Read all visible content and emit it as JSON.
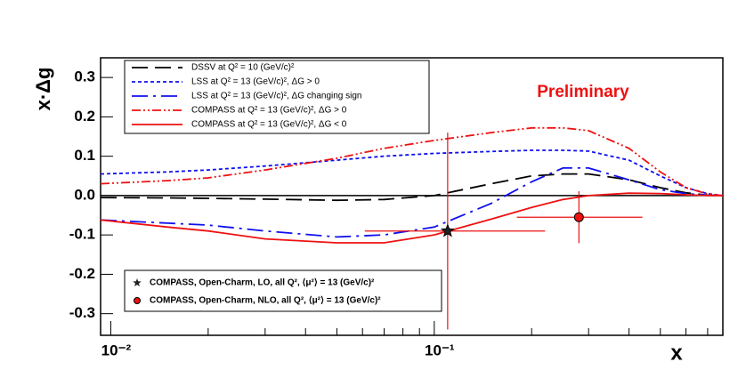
{
  "chart_data": {
    "type": "line",
    "title": "Preliminary",
    "title_color": "#ee1111",
    "x_label": "x",
    "y_label": "x·Δg",
    "log_x": true,
    "xlim": [
      0.0093,
      0.78
    ],
    "ylim": [
      -0.355,
      0.35
    ],
    "xticks": [
      {
        "value": 0.01,
        "label": "10⁻²"
      },
      {
        "value": 0.1,
        "label": "10⁻¹"
      }
    ],
    "xminorticks": [
      0.02,
      0.03,
      0.04,
      0.05,
      0.06,
      0.07,
      0.08,
      0.09,
      0.2,
      0.3,
      0.4,
      0.5,
      0.6,
      0.7
    ],
    "yticks": [
      0.3,
      0.2,
      0.1,
      {
        "value": 0,
        "label": "0.0"
      },
      -0.1,
      -0.2,
      -0.3
    ],
    "x": [
      0.0093,
      0.015,
      0.02,
      0.03,
      0.05,
      0.07,
      0.1,
      0.15,
      0.2,
      0.25,
      0.3,
      0.4,
      0.5,
      0.6,
      0.7,
      0.78
    ],
    "series": [
      {
        "name": "DSSV at Q² = 10 (GeV/c)²",
        "color": "#000000",
        "dash": "18,8",
        "values": [
          -0.005,
          -0.006,
          -0.007,
          -0.009,
          -0.012,
          -0.01,
          0.0,
          0.03,
          0.05,
          0.055,
          0.055,
          0.04,
          0.02,
          0.007,
          0.001,
          0.0
        ]
      },
      {
        "name": "LSS at Q² = 13 (GeV/c)², ΔG > 0",
        "color": "#1010ee",
        "dash": "4,3",
        "values": [
          0.055,
          0.06,
          0.065,
          0.075,
          0.09,
          0.1,
          0.107,
          0.112,
          0.115,
          0.115,
          0.113,
          0.09,
          0.05,
          0.02,
          0.005,
          0.0
        ]
      },
      {
        "name": "LSS at Q² = 13 (GeV/c)², ΔG changing sign",
        "color": "#1010ee",
        "dash": "18,6,3,6",
        "values": [
          -0.062,
          -0.07,
          -0.075,
          -0.09,
          -0.105,
          -0.1,
          -0.08,
          -0.02,
          0.035,
          0.07,
          0.07,
          0.04,
          0.015,
          0.005,
          0.001,
          0.0
        ]
      },
      {
        "name": "COMPASS at Q² = 13 (GeV/c)², ΔG > 0",
        "color": "#ee1111",
        "dash": "10,3,2,3,2,3",
        "values": [
          0.03,
          0.038,
          0.045,
          0.065,
          0.095,
          0.12,
          0.14,
          0.16,
          0.172,
          0.172,
          0.165,
          0.12,
          0.06,
          0.02,
          0.004,
          0.0
        ]
      },
      {
        "name": "COMPASS at Q² = 13 (GeV/c)², ΔG < 0",
        "color": "#ee1111",
        "dash": "",
        "values": [
          -0.062,
          -0.08,
          -0.09,
          -0.11,
          -0.12,
          -0.12,
          -0.1,
          -0.06,
          -0.03,
          -0.01,
          0.0,
          0.006,
          0.005,
          0.002,
          0.0,
          0.0
        ]
      }
    ],
    "points": [
      {
        "name": "COMPASS, Open-Charm, LO, all Q², ⟨μ²⟩ = 13 (GeV/c)²",
        "marker": "star",
        "color": "#ee1111",
        "x": 0.11,
        "y": -0.09,
        "y_error": 0.25,
        "x_min": 0.061,
        "x_max": 0.22
      },
      {
        "name": "COMPASS, Open-Charm, NLO, all Q², ⟨μ²⟩ = 13 (GeV/c)²",
        "marker": "circle",
        "color": "#ee1111",
        "x": 0.28,
        "y": -0.055,
        "y_error": 0.066,
        "x_min": 0.18,
        "x_max": 0.44
      }
    ]
  }
}
